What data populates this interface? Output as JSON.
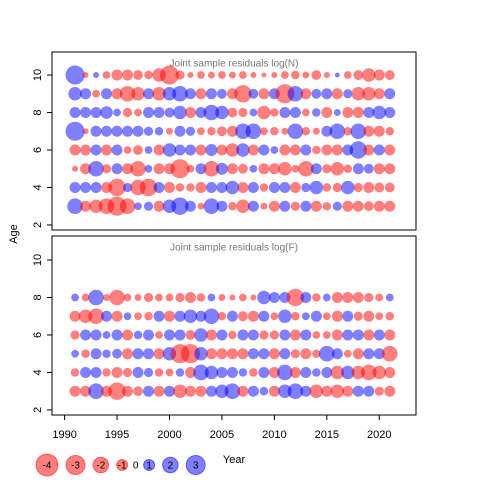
{
  "chart_data": [
    {
      "type": "bubble",
      "title": "Joint sample residuals log(N)",
      "x": [
        1991,
        1992,
        1993,
        1994,
        1995,
        1996,
        1997,
        1998,
        1999,
        2000,
        2001,
        2002,
        2003,
        2004,
        2005,
        2006,
        2007,
        2008,
        2009,
        2010,
        2011,
        2012,
        2013,
        2014,
        2015,
        2016,
        2017,
        2018,
        2019,
        2020,
        2021
      ],
      "ages": [
        10,
        9,
        8,
        7,
        6,
        5,
        4,
        3
      ],
      "values": [
        [
          3,
          -0.3,
          0.3,
          -0.5,
          -1,
          -1,
          -0.8,
          -0.6,
          -1.5,
          -3,
          -0.7,
          -0.3,
          -0.5,
          -0.4,
          -0.5,
          -0.4,
          -0.5,
          -0.3,
          -0.2,
          -0.3,
          -0.5,
          -0.6,
          -0.4,
          -0.8,
          -0.3,
          0.2,
          -0.5,
          -0.8,
          -1.5,
          -1,
          -0.8
        ],
        [
          1.5,
          1,
          -0.5,
          1,
          -1,
          -2,
          -1.5,
          1,
          -1.5,
          1.5,
          2,
          1,
          -1,
          1,
          0.8,
          -1,
          -2.5,
          0.8,
          -1,
          1,
          -3,
          2,
          -1,
          0.8,
          1,
          -1,
          0.7,
          -1.5,
          -1.5,
          -1,
          1
        ],
        [
          1,
          1,
          1,
          1.3,
          0.5,
          -0.7,
          -0.5,
          1,
          1,
          0.8,
          1.5,
          -1,
          1,
          2,
          1.5,
          -0.8,
          -0.7,
          0.5,
          -1.5,
          -0.6,
          1,
          1,
          -0.5,
          0.6,
          -1,
          0.4,
          -1,
          -1,
          1,
          1.5,
          1
        ],
        [
          3,
          -0.3,
          1,
          1,
          1,
          1,
          1,
          0.7,
          0.6,
          -0.4,
          1,
          0.7,
          -0.5,
          -0.6,
          -0.8,
          -1,
          2,
          2,
          -0.5,
          -0.6,
          -0.4,
          2,
          -0.6,
          -0.4,
          1,
          2,
          -0.6,
          2,
          -1,
          -1,
          -0.6
        ],
        [
          -1,
          -1,
          1,
          -1,
          1,
          -0.5,
          -0.8,
          0.5,
          -1,
          1.5,
          1,
          1,
          -1,
          1.2,
          -1,
          -1.5,
          1.5,
          -1,
          1,
          0.5,
          -1,
          -1,
          1,
          -0.6,
          -1,
          -1,
          1,
          2.5,
          -1,
          1,
          -1
        ],
        [
          -0.3,
          -1,
          2,
          -0.7,
          1,
          -1,
          -2,
          0.5,
          -1,
          -1,
          -3,
          -0.5,
          1,
          -2,
          1.2,
          -1,
          -0.8,
          0.5,
          -1,
          -1,
          -1.5,
          -0.5,
          -2,
          1,
          -0.7,
          -1.5,
          -0.6,
          1,
          0.8,
          -1,
          -1
        ],
        [
          1,
          1,
          1,
          -1,
          -2.5,
          0.7,
          -2,
          -2.5,
          1,
          -1,
          -0.6,
          -0.6,
          -1,
          1,
          1,
          1.5,
          -1,
          1,
          -0.6,
          1,
          1,
          -1,
          0.7,
          1.5,
          -0.6,
          -0.7,
          1.5,
          -0.7,
          -1,
          -0.8,
          -0.8
        ],
        [
          2,
          -1,
          -1.5,
          -2,
          -3,
          -2,
          0.5,
          0.7,
          -1,
          1.5,
          2.5,
          1,
          -0.4,
          2,
          1,
          -0.6,
          -1.5,
          1,
          -0.4,
          -1,
          1,
          -0.7,
          1,
          -1,
          -0.6,
          0.7,
          -1,
          -1,
          -0.8,
          -1,
          -1
        ]
      ],
      "xlim": [
        1988.8,
        2023.5
      ],
      "ylim": [
        1.73,
        11.23
      ],
      "yticks": [
        2,
        4,
        6,
        8,
        10
      ]
    },
    {
      "type": "bubble",
      "title": "Joint sample residuals log(F)",
      "x": [
        1991,
        1992,
        1993,
        1994,
        1995,
        1996,
        1997,
        1998,
        1999,
        2000,
        2001,
        2002,
        2003,
        2004,
        2005,
        2006,
        2007,
        2008,
        2009,
        2010,
        2011,
        2012,
        2013,
        2014,
        2015,
        2016,
        2017,
        2018,
        2019,
        2020,
        2021
      ],
      "ages": [
        8,
        7,
        6,
        5,
        4,
        3
      ],
      "values": [
        [
          0.5,
          -0.5,
          2,
          -0.4,
          -2,
          -0.5,
          -0.4,
          -0.7,
          -0.5,
          -0.5,
          -0.7,
          -1,
          -0.6,
          0.5,
          -0.4,
          -0.3,
          -0.5,
          -0.3,
          1.5,
          1,
          1,
          -2.5,
          1,
          -0.6,
          0.5,
          -1,
          -1,
          -1,
          -0.7,
          -0.5,
          0.5
        ],
        [
          -1,
          -1.5,
          -2,
          1,
          -1,
          0.5,
          -0.5,
          -0.6,
          1,
          -1,
          1,
          1.5,
          1,
          2,
          -0.6,
          1,
          -0.8,
          -1,
          1,
          -0.5,
          1.5,
          -0.6,
          0.5,
          1,
          -0.5,
          -1,
          1,
          -0.7,
          -1,
          -0.5,
          -0.6
        ],
        [
          -0.7,
          1,
          1,
          0.5,
          1,
          -1,
          0.6,
          1,
          -0.5,
          1,
          1,
          -0.8,
          1.5,
          -1,
          1,
          -0.6,
          1,
          1,
          -0.7,
          -0.7,
          1,
          -1,
          1,
          -0.5,
          -0.5,
          -1,
          1,
          1,
          -1,
          1,
          -1
        ],
        [
          0.5,
          -0.6,
          1,
          0.6,
          0.8,
          -1,
          1,
          1,
          -1,
          1.5,
          -3,
          -3,
          1.5,
          -1,
          -1,
          -1,
          -1,
          1,
          1,
          -1,
          1,
          -0.7,
          -1,
          -0.6,
          2,
          1,
          -0.5,
          -1,
          1,
          1,
          -2
        ],
        [
          -0.6,
          1,
          1,
          -0.6,
          -1,
          -0.7,
          1,
          0.7,
          -0.6,
          -0.5,
          0.6,
          -1,
          2,
          1.5,
          1,
          1,
          0.6,
          -0.6,
          1,
          -1,
          2,
          -1,
          1,
          0.6,
          1,
          -1.5,
          1.5,
          -1.5,
          -2,
          -1.5,
          -1
        ],
        [
          -1,
          -1,
          2,
          -1,
          -2.5,
          -1,
          -0.8,
          1,
          -1,
          1,
          -1.5,
          -1,
          -1,
          1,
          1.5,
          2,
          -1,
          1,
          0.6,
          -1,
          1.5,
          2,
          1,
          -1.5,
          -1,
          -1.5,
          -1,
          1,
          1,
          -0.7,
          -1
        ]
      ],
      "xlim": [
        1988.8,
        2023.5
      ],
      "ylim": [
        1.73,
        11.28
      ],
      "yticks": [
        2,
        4,
        6,
        8,
        10
      ],
      "xticks": [
        1990,
        1995,
        2000,
        2005,
        2010,
        2015,
        2020
      ]
    }
  ],
  "xlabel": "Year",
  "ylabel": "Age",
  "legend": {
    "values": [
      -4,
      -3,
      -2,
      -1,
      0,
      1,
      2,
      3
    ]
  },
  "colors": {
    "positive": "rgba(0,0,255,0.5)",
    "negative": "rgba(255,0,0,0.5)"
  }
}
